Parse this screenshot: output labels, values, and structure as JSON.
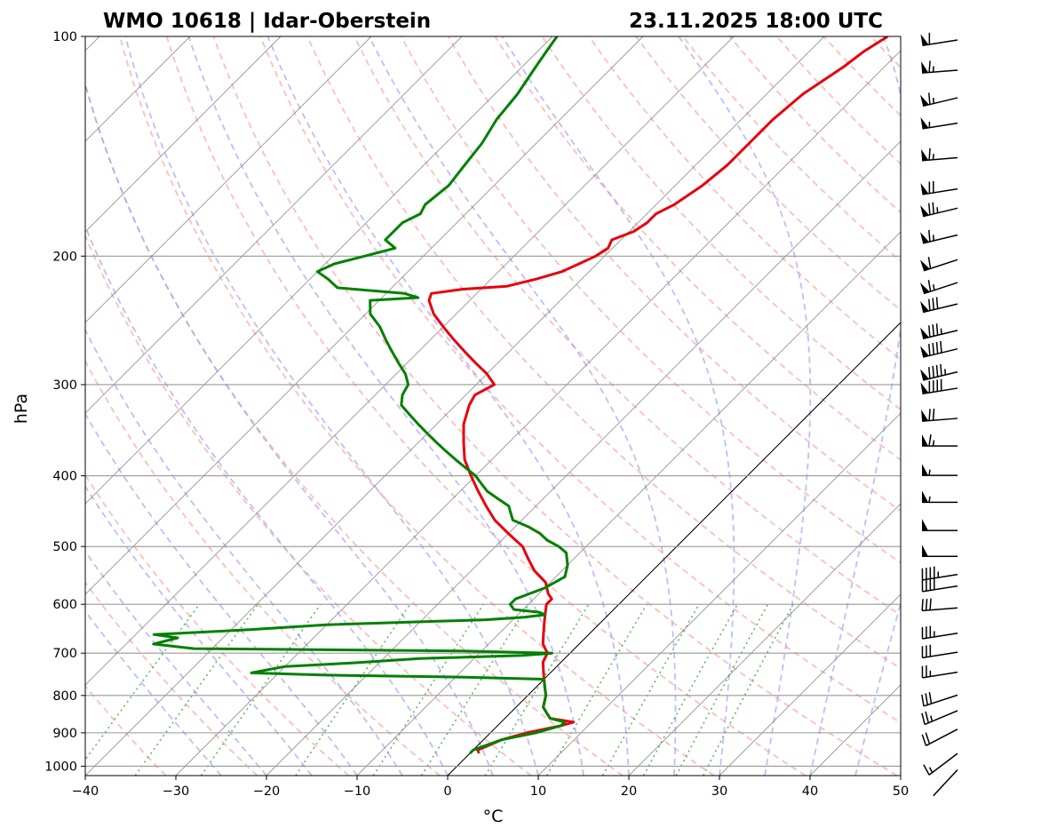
{
  "colors": {
    "temperature": "#e8000b",
    "dewpoint": "#008000",
    "dry_adiabat": "#ff9999",
    "moist_adiabat": "#9999ff",
    "mixing_ratio": "#33aa33",
    "isobar": "#999999",
    "isotherm": "#808080",
    "barb": "#000000"
  },
  "chart_data": {
    "type": "line",
    "title_left": "WMO 10618 | Idar-Oberstein",
    "title_right": "23.11.2025 18:00 UTC",
    "xlabel": "°C",
    "ylabel": "hPa",
    "xlim": [
      -40,
      50
    ],
    "ylim": [
      1030,
      100
    ],
    "xticks": [
      "−40",
      "−30",
      "−20",
      "−10",
      "0",
      "10",
      "20",
      "30",
      "40",
      "50"
    ],
    "yticks": [
      "100",
      "200",
      "300",
      "400",
      "500",
      "600",
      "700",
      "800",
      "900",
      "1000"
    ],
    "yticks_values": [
      100,
      200,
      300,
      400,
      500,
      600,
      700,
      800,
      900,
      1000
    ],
    "skew": "isotherms at 45°",
    "series": [
      {
        "name": "Temperature",
        "points": [
          [
            1,
            960
          ],
          [
            0.5,
            950
          ],
          [
            2,
            920
          ],
          [
            4,
            900
          ],
          [
            7,
            880
          ],
          [
            8,
            870
          ],
          [
            5,
            860
          ],
          [
            4,
            845
          ],
          [
            3,
            830
          ],
          [
            2,
            800
          ],
          [
            1,
            780
          ],
          [
            0,
            760
          ],
          [
            -1,
            740
          ],
          [
            -2,
            720
          ],
          [
            -2.5,
            700
          ],
          [
            -4,
            680
          ],
          [
            -5,
            660
          ],
          [
            -6,
            640
          ],
          [
            -7,
            620
          ],
          [
            -8,
            600
          ],
          [
            -8,
            590
          ],
          [
            -9,
            580
          ],
          [
            -10.5,
            560
          ],
          [
            -13,
            540
          ],
          [
            -15,
            520
          ],
          [
            -17,
            500
          ],
          [
            -20,
            480
          ],
          [
            -23,
            460
          ],
          [
            -25.5,
            440
          ],
          [
            -28,
            420
          ],
          [
            -30.5,
            400
          ],
          [
            -33,
            380
          ],
          [
            -35,
            360
          ],
          [
            -37,
            340
          ],
          [
            -38.5,
            320
          ],
          [
            -39,
            310
          ],
          [
            -38,
            300
          ],
          [
            -40,
            290
          ],
          [
            -42.5,
            280
          ],
          [
            -45,
            270
          ],
          [
            -47.5,
            260
          ],
          [
            -50,
            250
          ],
          [
            -52.5,
            240
          ],
          [
            -54.5,
            230
          ],
          [
            -55,
            225
          ],
          [
            -52,
            222
          ],
          [
            -47.5,
            220
          ],
          [
            -45,
            215
          ],
          [
            -43,
            210
          ],
          [
            -42,
            205
          ],
          [
            -41,
            200
          ],
          [
            -40.5,
            195
          ],
          [
            -41,
            190
          ],
          [
            -39.5,
            185
          ],
          [
            -39,
            180
          ],
          [
            -39,
            175
          ],
          [
            -38,
            170
          ],
          [
            -37,
            160
          ],
          [
            -36.5,
            150
          ],
          [
            -36.5,
            140
          ],
          [
            -36.5,
            130
          ],
          [
            -36,
            120
          ],
          [
            -34.5,
            110
          ],
          [
            -34,
            105
          ],
          [
            -33,
            100
          ]
        ],
        "color": "#e8000b"
      },
      {
        "name": "Dew point",
        "points": [
          [
            0,
            960
          ],
          [
            0,
            950
          ],
          [
            2,
            920
          ],
          [
            5,
            900
          ],
          [
            7,
            880
          ],
          [
            7,
            870
          ],
          [
            5,
            860
          ],
          [
            4,
            845
          ],
          [
            3,
            830
          ],
          [
            2,
            800
          ],
          [
            1,
            780
          ],
          [
            0,
            760
          ],
          [
            -9,
            755
          ],
          [
            -25,
            750
          ],
          [
            -33,
            745
          ],
          [
            -30,
            730
          ],
          [
            -23,
            722
          ],
          [
            -16,
            712
          ],
          [
            -5,
            705
          ],
          [
            -2,
            700
          ],
          [
            -12,
            695
          ],
          [
            -42,
            690
          ],
          [
            -47,
            680
          ],
          [
            -45,
            667
          ],
          [
            -48,
            660
          ],
          [
            -38,
            650
          ],
          [
            -30,
            640
          ],
          [
            -13,
            630
          ],
          [
            -9,
            625
          ],
          [
            -7,
            620
          ],
          [
            -8,
            615
          ],
          [
            -11,
            610
          ],
          [
            -12,
            600
          ],
          [
            -12,
            590
          ],
          [
            -10,
            570
          ],
          [
            -9,
            550
          ],
          [
            -10,
            530
          ],
          [
            -11.5,
            510
          ],
          [
            -13,
            500
          ],
          [
            -15,
            490
          ],
          [
            -16.5,
            480
          ],
          [
            -18.5,
            470
          ],
          [
            -21,
            460
          ],
          [
            -22,
            450
          ],
          [
            -23,
            440
          ],
          [
            -25,
            430
          ],
          [
            -27,
            420
          ],
          [
            -28.5,
            410
          ],
          [
            -30,
            400
          ],
          [
            -32,
            390
          ],
          [
            -34,
            380
          ],
          [
            -36,
            370
          ],
          [
            -38,
            360
          ],
          [
            -40,
            350
          ],
          [
            -42,
            340
          ],
          [
            -44,
            330
          ],
          [
            -46,
            320
          ],
          [
            -47,
            310
          ],
          [
            -47.5,
            300
          ],
          [
            -49,
            290
          ],
          [
            -51,
            280
          ],
          [
            -53,
            270
          ],
          [
            -55,
            260
          ],
          [
            -57,
            250
          ],
          [
            -59.5,
            240
          ],
          [
            -61,
            230
          ],
          [
            -56,
            228
          ],
          [
            -58,
            225
          ],
          [
            -66,
            221
          ],
          [
            -68,
            215
          ],
          [
            -70,
            210
          ],
          [
            -69,
            205
          ],
          [
            -66.5,
            200
          ],
          [
            -64,
            195
          ],
          [
            -66,
            190
          ],
          [
            -66,
            180
          ],
          [
            -65,
            175
          ],
          [
            -65.5,
            170
          ],
          [
            -65,
            160
          ],
          [
            -65.5,
            150
          ],
          [
            -66,
            140
          ],
          [
            -67,
            130
          ],
          [
            -67.5,
            120
          ],
          [
            -68.5,
            110
          ],
          [
            -69,
            105
          ],
          [
            -69.5,
            100
          ]
        ],
        "color": "#008000"
      }
    ],
    "wind_barbs": [
      {
        "p": 100,
        "speed_kt": 60,
        "dir_deg": 260
      },
      {
        "p": 110,
        "speed_kt": 65,
        "dir_deg": 265
      },
      {
        "p": 120,
        "speed_kt": 65,
        "dir_deg": 255
      },
      {
        "p": 130,
        "speed_kt": 55,
        "dir_deg": 260
      },
      {
        "p": 145,
        "speed_kt": 65,
        "dir_deg": 265
      },
      {
        "p": 160,
        "speed_kt": 70,
        "dir_deg": 260
      },
      {
        "p": 170,
        "speed_kt": 75,
        "dir_deg": 255
      },
      {
        "p": 185,
        "speed_kt": 65,
        "dir_deg": 255
      },
      {
        "p": 200,
        "speed_kt": 60,
        "dir_deg": 250
      },
      {
        "p": 215,
        "speed_kt": 65,
        "dir_deg": 250
      },
      {
        "p": 230,
        "speed_kt": 80,
        "dir_deg": 255
      },
      {
        "p": 250,
        "speed_kt": 85,
        "dir_deg": 255
      },
      {
        "p": 265,
        "speed_kt": 90,
        "dir_deg": 255
      },
      {
        "p": 285,
        "speed_kt": 95,
        "dir_deg": 255
      },
      {
        "p": 300,
        "speed_kt": 90,
        "dir_deg": 260
      },
      {
        "p": 330,
        "speed_kt": 70,
        "dir_deg": 265
      },
      {
        "p": 360,
        "speed_kt": 65,
        "dir_deg": 270
      },
      {
        "p": 395,
        "speed_kt": 55,
        "dir_deg": 270
      },
      {
        "p": 430,
        "speed_kt": 55,
        "dir_deg": 270
      },
      {
        "p": 470,
        "speed_kt": 50,
        "dir_deg": 270
      },
      {
        "p": 510,
        "speed_kt": 50,
        "dir_deg": 270
      },
      {
        "p": 540,
        "speed_kt": 45,
        "dir_deg": 260
      },
      {
        "p": 560,
        "speed_kt": 40,
        "dir_deg": 260
      },
      {
        "p": 600,
        "speed_kt": 30,
        "dir_deg": 265
      },
      {
        "p": 650,
        "speed_kt": 35,
        "dir_deg": 260
      },
      {
        "p": 690,
        "speed_kt": 30,
        "dir_deg": 260
      },
      {
        "p": 735,
        "speed_kt": 25,
        "dir_deg": 260
      },
      {
        "p": 790,
        "speed_kt": 30,
        "dir_deg": 250
      },
      {
        "p": 830,
        "speed_kt": 25,
        "dir_deg": 245
      },
      {
        "p": 880,
        "speed_kt": 20,
        "dir_deg": 240
      },
      {
        "p": 950,
        "speed_kt": 15,
        "dir_deg": 230
      },
      {
        "p": 1000,
        "speed_kt": 0,
        "dir_deg": 220
      }
    ]
  }
}
